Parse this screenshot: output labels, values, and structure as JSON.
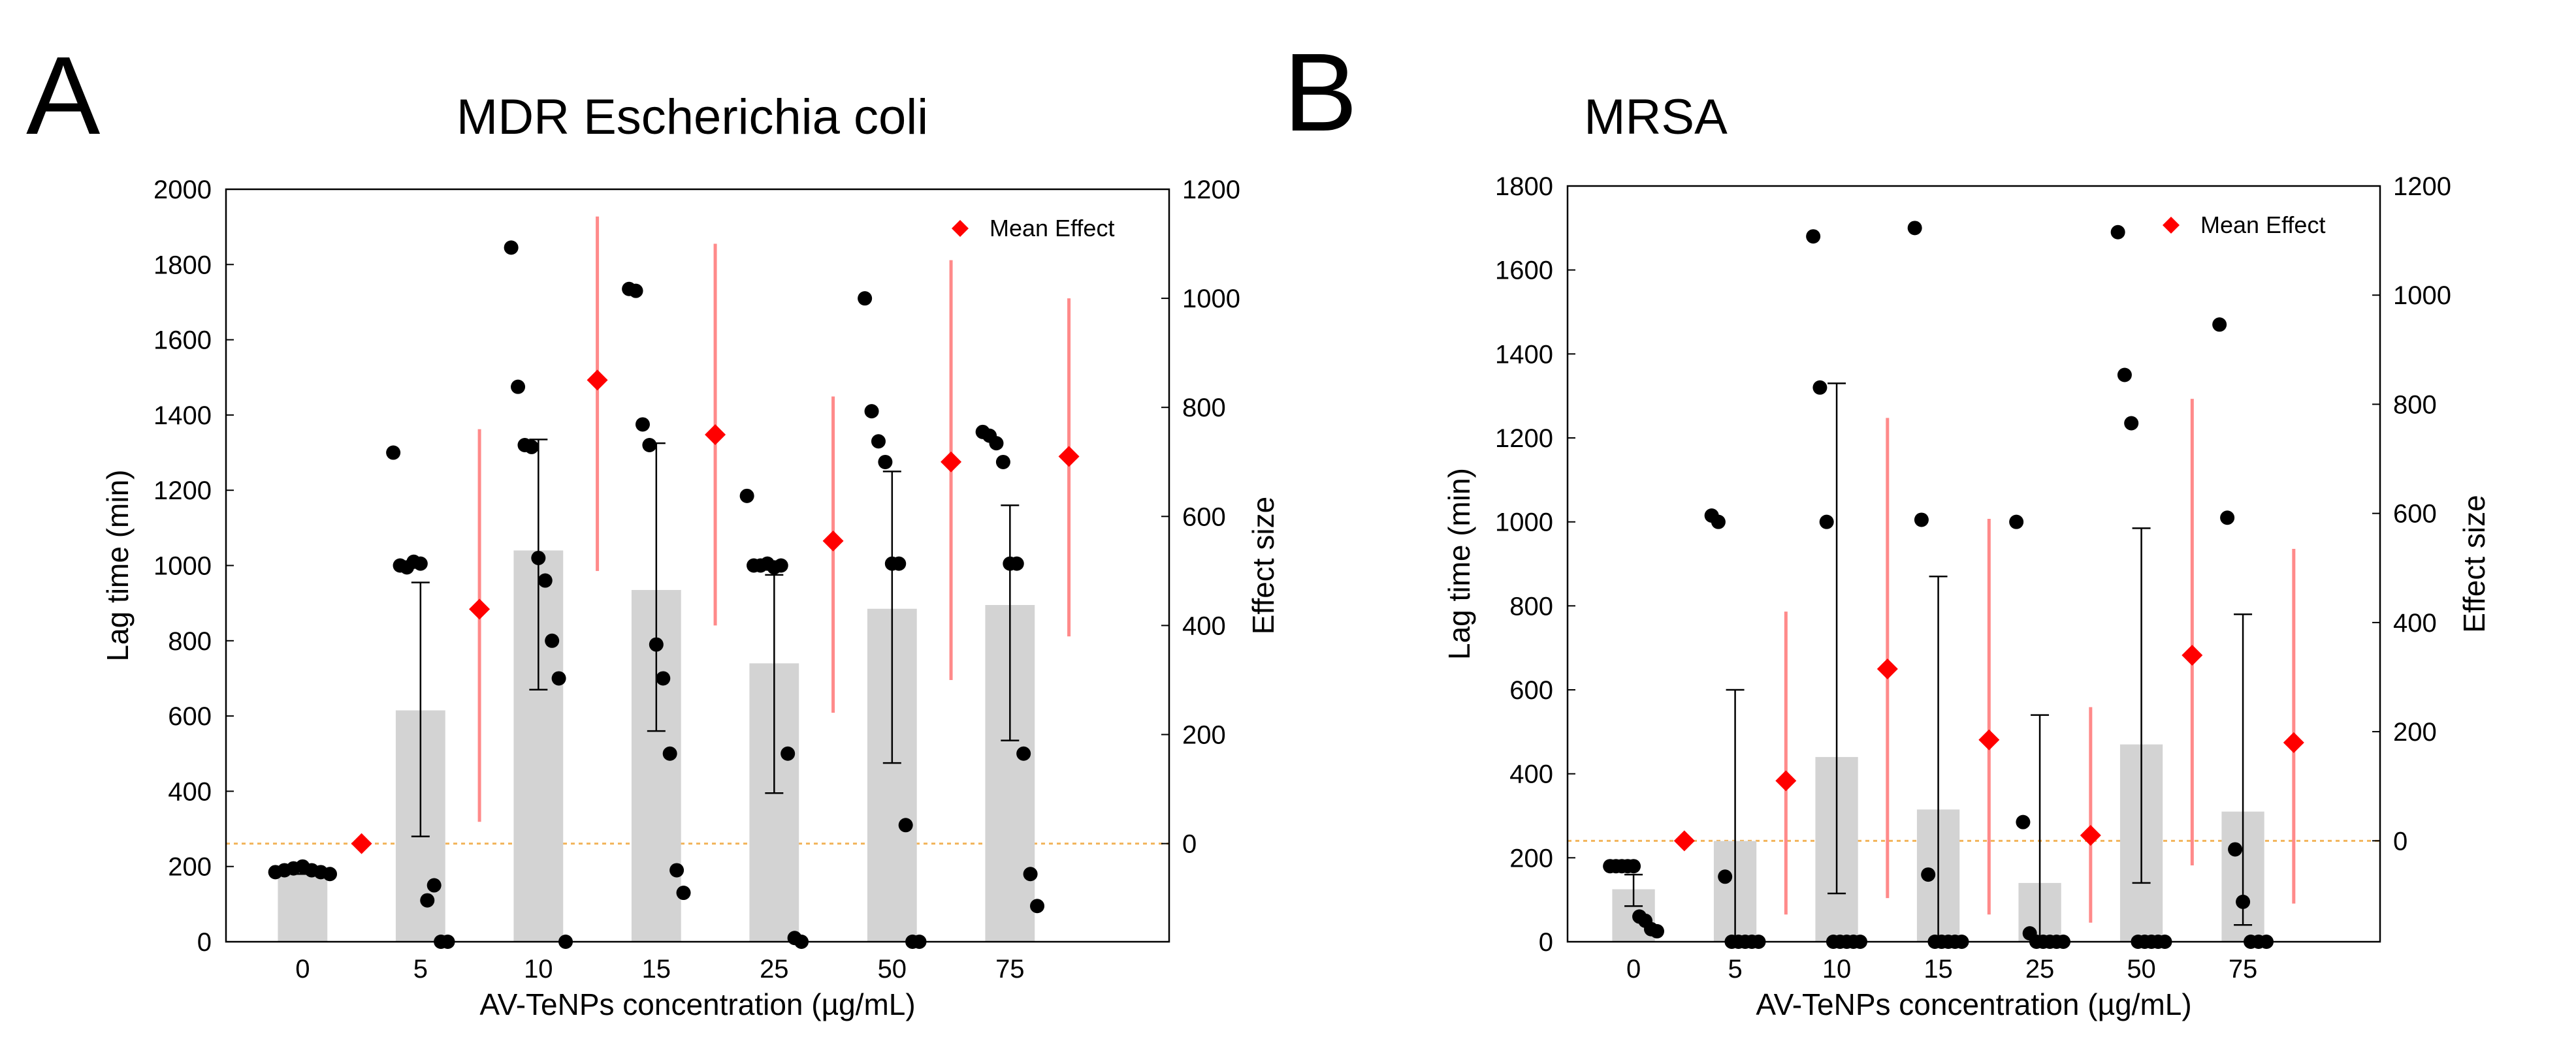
{
  "chart_data": [
    {
      "panel_letter": "A",
      "type": "bar",
      "title": "MDR Escherichia coli",
      "xlabel": "AV-TeNPs concentration (µg/mL)",
      "ylabel": "Lag time (min)",
      "y2label": "Effect size",
      "ylim": [
        0,
        2000
      ],
      "yticks": [
        0,
        200,
        400,
        600,
        800,
        1000,
        1200,
        1400,
        1600,
        1800,
        2000
      ],
      "y2lim": [
        -180,
        1200
      ],
      "y2ticks": [
        0,
        200,
        400,
        600,
        800,
        1000,
        1200
      ],
      "categories": [
        "0",
        "5",
        "10",
        "15",
        "25",
        "50",
        "75"
      ],
      "bar_means": [
        180,
        615,
        1040,
        935,
        740,
        885,
        895
      ],
      "error_low": [
        180,
        280,
        670,
        560,
        395,
        475,
        535
      ],
      "error_high": [
        180,
        955,
        1335,
        1325,
        975,
        1250,
        1160
      ],
      "points": [
        [
          185,
          190,
          195,
          200,
          190,
          185,
          180
        ],
        [
          1300,
          1000,
          995,
          1010,
          1005,
          110,
          150,
          0,
          0
        ],
        [
          1845,
          1475,
          1320,
          1315,
          1020,
          960,
          800,
          700,
          0
        ],
        [
          1735,
          1730,
          1375,
          1320,
          790,
          700,
          500,
          190,
          130
        ],
        [
          1185,
          1000,
          1000,
          1005,
          995,
          1000,
          500,
          10,
          0
        ],
        [
          1710,
          1410,
          1330,
          1275,
          1005,
          1005,
          310,
          0,
          0
        ],
        [
          1355,
          1345,
          1325,
          1275,
          1005,
          1005,
          500,
          180,
          95
        ]
      ],
      "effect_mean": [
        0,
        430,
        850,
        750,
        555,
        700,
        710
      ],
      "effect_ci_low": [
        0,
        40,
        500,
        400,
        240,
        300,
        380
      ],
      "effect_ci_high": [
        0,
        760,
        1150,
        1100,
        820,
        1070,
        1000
      ],
      "legend": "Mean Effect",
      "legend_position": "top-right",
      "reference_line": "effect size 0 (dotted orange)"
    },
    {
      "panel_letter": "B",
      "type": "bar",
      "title": "MRSA",
      "xlabel": "AV-TeNPs concentration (µg/mL)",
      "ylabel": "Lag time (min)",
      "y2label": "Effect size",
      "ylim": [
        0,
        1800
      ],
      "yticks": [
        0,
        200,
        400,
        600,
        800,
        1000,
        1200,
        1400,
        1600,
        1800
      ],
      "y2lim": [
        -185,
        1200
      ],
      "y2ticks": [
        0,
        200,
        400,
        600,
        800,
        1000,
        1200
      ],
      "categories": [
        "0",
        "5",
        "10",
        "15",
        "25",
        "50",
        "75"
      ],
      "bar_means": [
        125,
        240,
        440,
        315,
        140,
        470,
        310
      ],
      "error_low": [
        85,
        0,
        115,
        0,
        0,
        140,
        40
      ],
      "error_high": [
        160,
        600,
        1330,
        870,
        540,
        985,
        780
      ],
      "points": [
        [
          180,
          180,
          180,
          180,
          180,
          60,
          50,
          30,
          25
        ],
        [
          1015,
          1000,
          155,
          0,
          0,
          0,
          0,
          0
        ],
        [
          1680,
          1320,
          1000,
          0,
          0,
          0,
          0,
          0
        ],
        [
          1700,
          1005,
          160,
          0,
          0,
          0,
          0,
          0
        ],
        [
          1000,
          285,
          20,
          0,
          0,
          0,
          0,
          0
        ],
        [
          1690,
          1350,
          1235,
          0,
          0,
          0,
          0,
          0
        ],
        [
          1470,
          1010,
          220,
          95,
          0,
          0,
          0
        ]
      ],
      "effect_mean": [
        0,
        110,
        315,
        185,
        10,
        340,
        180
      ],
      "effect_ci_low": [
        0,
        -135,
        -105,
        -135,
        -150,
        -45,
        -115
      ],
      "effect_ci_high": [
        0,
        420,
        775,
        590,
        245,
        810,
        535
      ],
      "legend": "Mean Effect",
      "legend_position": "top-right",
      "reference_line": "effect size 0 (dotted orange)"
    }
  ],
  "colors": {
    "bar": "#d3d3d3",
    "point": "#000000",
    "effect": "#ff0000",
    "effect_ci": "#ff8a8a",
    "zero_line": "#f2b45a",
    "errorbar": "#000000"
  }
}
